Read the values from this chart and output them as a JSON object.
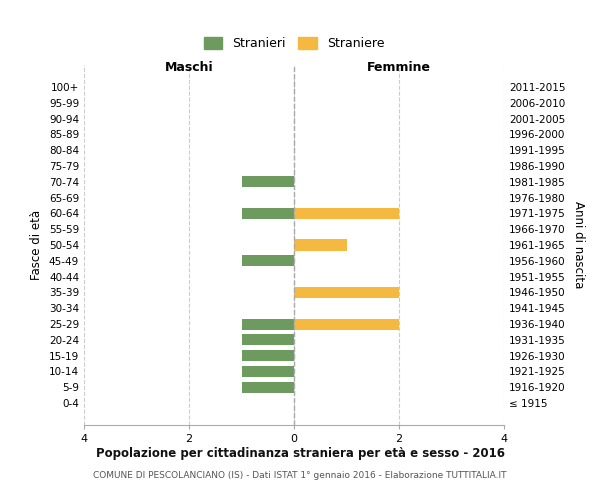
{
  "age_groups": [
    "100+",
    "95-99",
    "90-94",
    "85-89",
    "80-84",
    "75-79",
    "70-74",
    "65-69",
    "60-64",
    "55-59",
    "50-54",
    "45-49",
    "40-44",
    "35-39",
    "30-34",
    "25-29",
    "20-24",
    "15-19",
    "10-14",
    "5-9",
    "0-4"
  ],
  "birth_years": [
    "≤ 1915",
    "1916-1920",
    "1921-1925",
    "1926-1930",
    "1931-1935",
    "1936-1940",
    "1941-1945",
    "1946-1950",
    "1951-1955",
    "1956-1960",
    "1961-1965",
    "1966-1970",
    "1971-1975",
    "1976-1980",
    "1981-1985",
    "1986-1990",
    "1991-1995",
    "1996-2000",
    "2001-2005",
    "2006-2010",
    "2011-2015"
  ],
  "maschi": [
    0,
    0,
    0,
    0,
    0,
    0,
    -1,
    0,
    -1,
    0,
    0,
    -1,
    0,
    0,
    0,
    -1,
    -1,
    -1,
    -1,
    -1,
    0
  ],
  "femmine": [
    0,
    0,
    0,
    0,
    0,
    0,
    0,
    0,
    2,
    0,
    1,
    0,
    0,
    2,
    0,
    2,
    0,
    0,
    0,
    0,
    0
  ],
  "color_maschi": "#6d9b5f",
  "color_femmine": "#f5b942",
  "title": "Popolazione per cittadinanza straniera per età e sesso - 2016",
  "subtitle": "COMUNE DI PESCOLANCIANO (IS) - Dati ISTAT 1° gennaio 2016 - Elaborazione TUTTITALIA.IT",
  "xlabel_left": "Maschi",
  "xlabel_right": "Femmine",
  "ylabel_left": "Fasce di età",
  "ylabel_right": "Anni di nascita",
  "legend_maschi": "Stranieri",
  "legend_femmine": "Straniere",
  "xlim": [
    -4,
    4
  ],
  "xticks": [
    -4,
    -2,
    0,
    2,
    4
  ],
  "xticklabels": [
    "4",
    "2",
    "0",
    "2",
    "4"
  ],
  "background_color": "#ffffff",
  "grid_color": "#cccccc",
  "bar_height": 0.7
}
